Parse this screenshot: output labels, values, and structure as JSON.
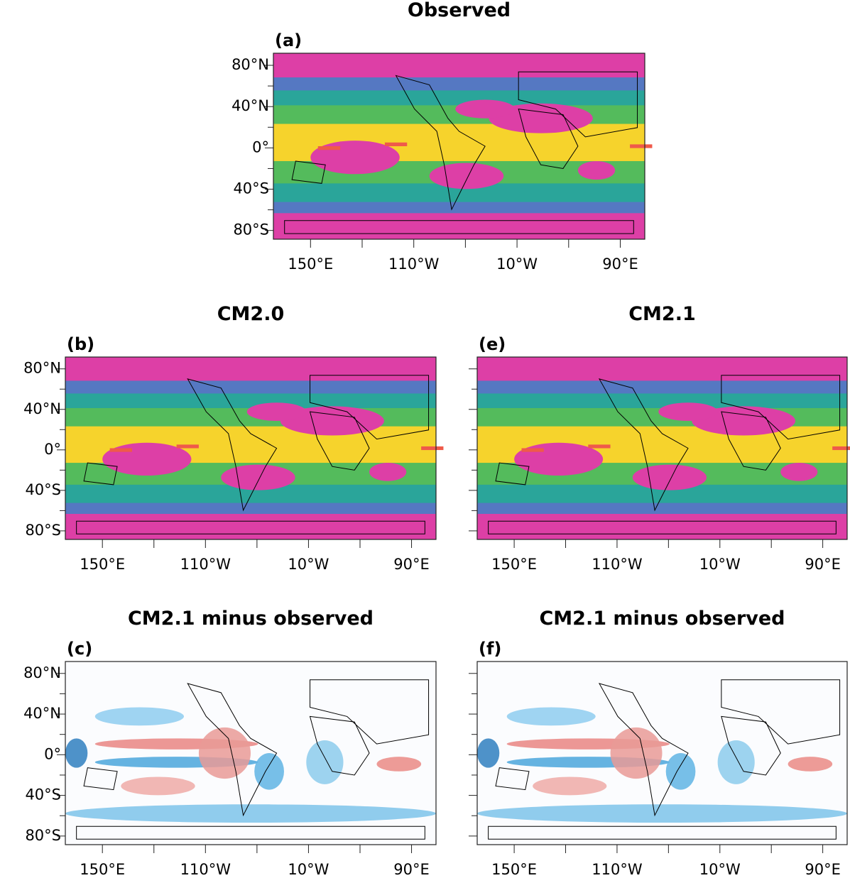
{
  "panels": [
    {
      "title": "Observed",
      "label": "(a)",
      "yticks": [
        "80°N",
        "40°N",
        "0°",
        "40°S",
        "80°S"
      ],
      "xticks": [
        "150°E",
        "110°W",
        "10°W",
        "90°E"
      ]
    },
    {
      "title": "CM2.0",
      "label": "(b)",
      "yticks": [
        "80°N",
        "40°N",
        "0°",
        "40°S",
        "80°S"
      ],
      "xticks": [
        "150°E",
        "110°W",
        "10°W",
        "90°E"
      ]
    },
    {
      "title": "CM2.1",
      "label": "(e)",
      "xticks": [
        "150°E",
        "110°W",
        "10°W",
        "90°E"
      ]
    },
    {
      "title": "CM2.1 minus observed",
      "label": "(c)",
      "yticks": [
        "80°N",
        "40°N",
        "0°",
        "40°S",
        "80°S"
      ],
      "xticks": [
        "150°E",
        "110°W",
        "10°W",
        "90°E"
      ]
    },
    {
      "title": "CM2.1 minus observed",
      "label": "(f)",
      "xticks": [
        "150°E",
        "110°W",
        "10°W",
        "90°E"
      ]
    }
  ]
}
